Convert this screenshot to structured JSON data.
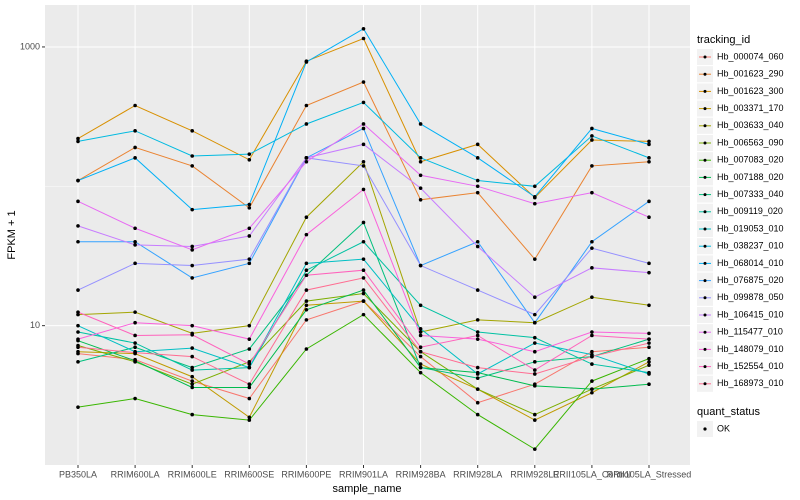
{
  "chart_data": {
    "type": "line",
    "x_label": "sample_name",
    "y_label": "FPKM + 1",
    "categories": [
      "PB350LA",
      "RRIM600LA",
      "RRIM600LE",
      "RRIM600SE",
      "RRIM600PE",
      "RRIM901LA",
      "RRIM928BA",
      "RRIM928LA",
      "RRIM928LE",
      "RRII105LA_Control",
      "RRII105LA_Stressed"
    ],
    "log_y": true,
    "ylim": [
      1,
      2000
    ],
    "yticks": [
      10,
      1000
    ],
    "minor_grid": [
      100
    ],
    "grid": true,
    "legend_title": "tracking_id",
    "legend_position": "right",
    "point_color": "#000000",
    "point_legend": {
      "title": "quant_status",
      "labels": [
        "OK"
      ]
    },
    "series": [
      {
        "name": "Hb_000074_060",
        "color": "#F8766D",
        "values": [
          6.3,
          5.7,
          4.0,
          3.0,
          11,
          15,
          6.0,
          2.8,
          3.8,
          6.5,
          7.0
        ]
      },
      {
        "name": "Hb_001623_290",
        "color": "#EA8331",
        "values": [
          110,
          190,
          140,
          70,
          380,
          560,
          80,
          90,
          30,
          140,
          150
        ]
      },
      {
        "name": "Hb_001623_300",
        "color": "#D89000",
        "values": [
          220,
          380,
          250,
          155,
          790,
          1150,
          150,
          200,
          83,
          215,
          210
        ]
      },
      {
        "name": "Hb_003371_170",
        "color": "#C09B00",
        "values": [
          6.5,
          6.3,
          4.3,
          2.2,
          14,
          15,
          5.3,
          3.5,
          2.1,
          3.3,
          5.5
        ]
      },
      {
        "name": "Hb_003633_040",
        "color": "#A3A500",
        "values": [
          12,
          12.5,
          8.8,
          10,
          60,
          150,
          9,
          11,
          10.5,
          16,
          14
        ]
      },
      {
        "name": "Hb_006563_090",
        "color": "#7CAE00",
        "values": [
          7.2,
          5.5,
          3.8,
          5.5,
          15,
          17,
          6.5,
          3.5,
          2.3,
          3.5,
          5.2
        ]
      },
      {
        "name": "Hb_007083_020",
        "color": "#39B600",
        "values": [
          2.6,
          3.0,
          2.3,
          2.1,
          6.8,
          12,
          4.6,
          2.3,
          1.3,
          4.0,
          5.8
        ]
      },
      {
        "name": "Hb_007188_020",
        "color": "#00BB4E",
        "values": [
          7.8,
          5.6,
          3.6,
          3.6,
          13,
          18,
          5.0,
          4.6,
          3.7,
          3.5,
          3.8
        ]
      },
      {
        "name": "Hb_007333_040",
        "color": "#00BF7D",
        "values": [
          5.5,
          7.0,
          5.0,
          6.8,
          23,
          55,
          5.0,
          4.2,
          5.5,
          6.0,
          8.0
        ]
      },
      {
        "name": "Hb_009119_020",
        "color": "#00C1A3",
        "values": [
          9,
          7.5,
          4.8,
          5.0,
          25,
          40,
          14,
          9.0,
          8.2,
          5.3,
          4.6
        ]
      },
      {
        "name": "Hb_019053_010",
        "color": "#00BFC4",
        "values": [
          10,
          6.5,
          6.9,
          5.0,
          28,
          30,
          9.5,
          4.5,
          7.5,
          6.2,
          4.5
        ]
      },
      {
        "name": "Hb_038237_010",
        "color": "#00BAE0",
        "values": [
          210,
          250,
          165,
          170,
          280,
          400,
          160,
          110,
          100,
          230,
          160
        ]
      },
      {
        "name": "Hb_068014_010",
        "color": "#00B0F6",
        "values": [
          110,
          160,
          68,
          74,
          780,
          1350,
          280,
          160,
          84,
          260,
          200
        ]
      },
      {
        "name": "Hb_076875_020",
        "color": "#35A2FF",
        "values": [
          40,
          40,
          22,
          28,
          160,
          260,
          27,
          40,
          10.5,
          40,
          78
        ]
      },
      {
        "name": "Hb_099878_050",
        "color": "#9590FF",
        "values": [
          18,
          28,
          27,
          30,
          160,
          140,
          27,
          18,
          12,
          36,
          28
        ]
      },
      {
        "name": "Hb_106415_010",
        "color": "#C77CFF",
        "values": [
          52,
          38,
          37,
          44,
          160,
          200,
          97,
          37,
          16,
          26,
          24
        ]
      },
      {
        "name": "Hb_115477_010",
        "color": "#E76BF3",
        "values": [
          78,
          50,
          35,
          50,
          150,
          280,
          120,
          100,
          75,
          90,
          60
        ]
      },
      {
        "name": "Hb_148079_010",
        "color": "#FA62DB",
        "values": [
          8.0,
          10.5,
          10.0,
          8.0,
          45,
          95,
          8.5,
          8.0,
          6.5,
          9.0,
          8.8
        ]
      },
      {
        "name": "Hb_152554_010",
        "color": "#FF62BC",
        "values": [
          12.5,
          8.5,
          8.6,
          5.3,
          23,
          25,
          7.0,
          8.5,
          4.8,
          8.5,
          8.0
        ]
      },
      {
        "name": "Hb_168973_010",
        "color": "#FF6C91",
        "values": [
          7.0,
          6.4,
          6.0,
          3.8,
          18,
          22,
          6.5,
          5.0,
          4.5,
          6.0,
          7.5
        ]
      }
    ]
  }
}
